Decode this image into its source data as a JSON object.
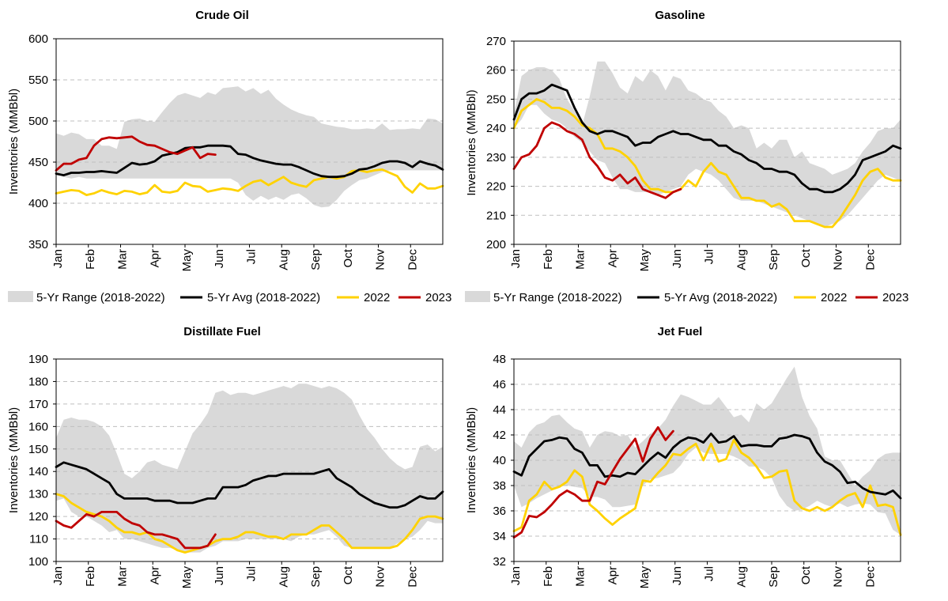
{
  "chart_data": [
    {
      "type": "line",
      "title": "Crude Oil",
      "ylabel": "Inventories (MMBbl)",
      "ylim": [
        350,
        600
      ],
      "yticks": [
        350,
        400,
        450,
        500,
        550,
        600
      ],
      "months": [
        "Jan",
        "Feb",
        "Mar",
        "Apr",
        "May",
        "Jun",
        "Jul",
        "Aug",
        "Sep",
        "Oct",
        "Nov",
        "Dec"
      ],
      "legend": [
        "5-Yr Range (2018-2022)",
        "5-Yr Avg (2018-2022)",
        "2022",
        "2023"
      ],
      "x_weeks": 52,
      "range_high": [
        485,
        482,
        486,
        484,
        478,
        478,
        470,
        470,
        466,
        499,
        502,
        503,
        500,
        499,
        511,
        522,
        531,
        534,
        531,
        528,
        535,
        532,
        540,
        541,
        542,
        536,
        540,
        533,
        538,
        527,
        520,
        514,
        510,
        507,
        505,
        497,
        495,
        493,
        492,
        490,
        490,
        491,
        490,
        497,
        489,
        490,
        490,
        491,
        490,
        503,
        502,
        497
      ],
      "range_low": [
        437,
        432,
        430,
        432,
        430,
        430,
        430,
        430,
        430,
        430,
        430,
        430,
        430,
        430,
        430,
        430,
        430,
        430,
        430,
        430,
        430,
        430,
        430,
        430,
        425,
        410,
        403,
        409,
        404,
        408,
        404,
        410,
        412,
        406,
        398,
        395,
        396,
        404,
        415,
        422,
        428,
        430,
        434,
        438,
        440,
        440,
        440,
        440,
        440,
        440,
        440,
        440
      ],
      "avg": [
        436,
        434,
        437,
        437,
        438,
        438,
        439,
        438,
        437,
        443,
        449,
        447,
        448,
        451,
        458,
        460,
        462,
        467,
        468,
        468,
        470,
        470,
        470,
        469,
        460,
        459,
        455,
        452,
        450,
        448,
        447,
        447,
        444,
        440,
        436,
        433,
        432,
        432,
        433,
        436,
        441,
        442,
        445,
        449,
        451,
        451,
        449,
        444,
        451,
        448,
        446,
        441
      ],
      "y2022": [
        412,
        414,
        416,
        415,
        410,
        412,
        416,
        413,
        411,
        415,
        414,
        411,
        413,
        422,
        414,
        413,
        415,
        425,
        421,
        420,
        414,
        416,
        418,
        417,
        415,
        421,
        426,
        428,
        422,
        427,
        432,
        425,
        422,
        420,
        428,
        430,
        432,
        430,
        432,
        439,
        440,
        438,
        440,
        441,
        437,
        433,
        420,
        413,
        424,
        418,
        418,
        421
      ],
      "y2023": [
        440,
        448,
        448,
        453,
        455,
        470,
        478,
        480,
        479,
        480,
        481,
        475,
        471,
        470,
        466,
        462,
        460,
        464,
        468,
        455,
        460,
        459
      ]
    },
    {
      "type": "line",
      "title": "Gasoline",
      "ylabel": "Inventories (MMBbl)",
      "ylim": [
        200,
        270
      ],
      "yticks": [
        200,
        210,
        220,
        230,
        240,
        250,
        260,
        270
      ],
      "months": [
        "Jan",
        "Feb",
        "Mar",
        "Apr",
        "May",
        "Jun",
        "Jul",
        "Aug",
        "Sep",
        "Oct",
        "Nov",
        "Dec"
      ],
      "legend": [
        "5-Yr Range (2018-2022)",
        "5-Yr Avg (2018-2022)",
        "2022",
        "2023"
      ],
      "x_weeks": 52,
      "range_high": [
        245,
        258,
        260,
        261,
        261,
        260,
        257,
        250,
        246,
        241,
        251,
        263,
        263,
        259,
        254,
        252,
        258,
        256,
        260,
        258,
        253,
        258,
        257,
        253,
        252,
        250,
        249,
        246,
        244,
        240,
        241,
        240,
        233,
        235,
        233,
        236,
        236,
        230,
        232,
        228,
        227,
        226,
        224,
        225,
        226,
        228,
        232,
        235,
        239,
        240,
        240,
        243
      ],
      "range_low": [
        240,
        243,
        248,
        248,
        245,
        243,
        242,
        240,
        237,
        235,
        232,
        229,
        228,
        223,
        219,
        219,
        218,
        218,
        218,
        217,
        218,
        219,
        220,
        224,
        226,
        225,
        224,
        222,
        219,
        216,
        215,
        215,
        215,
        214,
        213,
        212,
        211,
        210,
        209,
        208,
        207,
        206,
        207,
        208,
        210,
        213,
        216,
        219,
        222,
        224,
        223,
        222
      ],
      "avg": [
        243,
        250,
        252,
        252,
        253,
        255,
        254,
        253,
        247,
        242,
        239,
        238,
        239,
        239,
        238,
        237,
        234,
        235,
        235,
        237,
        238,
        239,
        238,
        238,
        237,
        236,
        236,
        234,
        234,
        232,
        231,
        229,
        228,
        226,
        226,
        225,
        225,
        224,
        221,
        219,
        219,
        218,
        218,
        219,
        221,
        224,
        229,
        230,
        231,
        232,
        234,
        233
      ],
      "y2022": [
        240,
        246,
        248,
        250,
        249,
        247,
        247,
        246,
        244,
        241,
        240,
        238,
        233,
        233,
        232,
        230,
        227,
        222,
        219,
        219,
        218,
        218,
        219,
        222,
        220,
        225,
        228,
        225,
        224,
        220,
        216,
        216,
        215,
        215,
        213,
        214,
        212,
        208,
        208,
        208,
        207,
        206,
        206,
        209,
        213,
        217,
        222,
        225,
        226,
        223,
        222,
        222
      ],
      "y2023": [
        226,
        230,
        231,
        234,
        240,
        242,
        241,
        239,
        238,
        236,
        230,
        227,
        223,
        222,
        224,
        221,
        223,
        219,
        218,
        217,
        216,
        218,
        219
      ]
    },
    {
      "type": "line",
      "title": "Distillate Fuel",
      "ylabel": "Inventories (MMBbl)",
      "ylim": [
        100,
        190
      ],
      "yticks": [
        100,
        110,
        120,
        130,
        140,
        150,
        160,
        170,
        180,
        190
      ],
      "months": [
        "Jan",
        "Feb",
        "Mar",
        "Apr",
        "May",
        "Jun",
        "Jul",
        "Aug",
        "Sep",
        "Oct",
        "Nov",
        "Dec"
      ],
      "legend": [
        "5-Yr Range (2018-2022)",
        "5-Yr Avg (2018-2022)",
        "2022",
        "2023"
      ],
      "x_weeks": 52,
      "range_high": [
        155,
        163,
        164,
        163,
        163,
        162,
        160,
        156,
        148,
        139,
        137,
        140,
        144,
        145,
        143,
        142,
        141,
        149,
        157,
        161,
        166,
        175,
        176,
        174,
        175,
        175,
        174,
        175,
        176,
        177,
        178,
        177,
        179,
        179,
        178,
        177,
        178,
        177,
        175,
        172,
        165,
        159,
        155,
        150,
        146,
        143,
        141,
        142,
        151,
        152,
        149,
        151
      ],
      "range_low": [
        127,
        128,
        122,
        120,
        120,
        118,
        116,
        113,
        114,
        110,
        110,
        109,
        108,
        107,
        106,
        106,
        105,
        104,
        104,
        104,
        106,
        107,
        109,
        109,
        109,
        110,
        110,
        110,
        110,
        110,
        110,
        109,
        111,
        112,
        112,
        113,
        114,
        111,
        107,
        106,
        106,
        106,
        106,
        106,
        106,
        108,
        110,
        111,
        114,
        118,
        117,
        117
      ],
      "avg": [
        142,
        144,
        143,
        142,
        141,
        139,
        137,
        135,
        130,
        128,
        128,
        128,
        128,
        127,
        127,
        127,
        126,
        126,
        126,
        127,
        128,
        128,
        133,
        133,
        133,
        134,
        136,
        137,
        138,
        138,
        139,
        139,
        139,
        139,
        139,
        140,
        141,
        137,
        135,
        133,
        130,
        128,
        126,
        125,
        124,
        124,
        125,
        127,
        129,
        128,
        128,
        131
      ],
      "y2022": [
        130,
        129,
        126,
        124,
        122,
        121,
        120,
        118,
        115,
        113,
        113,
        112,
        113,
        110,
        109,
        107,
        105,
        104,
        105,
        106,
        107,
        109,
        110,
        110,
        111,
        113,
        113,
        112,
        111,
        111,
        110,
        112,
        112,
        112,
        114,
        116,
        116,
        113,
        110,
        106,
        106,
        106,
        106,
        106,
        106,
        107,
        110,
        114,
        119,
        120,
        120,
        119
      ],
      "y2023": [
        118,
        116,
        115,
        118,
        121,
        120,
        122,
        122,
        122,
        119,
        117,
        116,
        113,
        112,
        112,
        111,
        110,
        106,
        106,
        106,
        107,
        112
      ]
    },
    {
      "type": "line",
      "title": "Jet Fuel",
      "ylabel": "Inventories (MMBbl)",
      "ylim": [
        32,
        48
      ],
      "yticks": [
        32,
        34,
        36,
        38,
        40,
        42,
        44,
        46,
        48
      ],
      "months": [
        "Jan",
        "Feb",
        "Mar",
        "Apr",
        "May",
        "Jun",
        "Jul",
        "Aug",
        "Sep",
        "Oct",
        "Nov",
        "Dec"
      ],
      "legend": [
        "5-Yr Range (2018-2022)",
        "5-Yr Avg (2018-2022)",
        "2022",
        "2023"
      ],
      "x_weeks": 52,
      "range_high": [
        41.5,
        41.0,
        42.2,
        42.8,
        43.0,
        43.5,
        43.6,
        43.0,
        42.5,
        42.3,
        41.0,
        42.0,
        42.3,
        42.2,
        41.9,
        42.0,
        41.0,
        41.5,
        42.1,
        42.5,
        43.2,
        44.3,
        45.2,
        45.0,
        44.7,
        44.4,
        44.4,
        45.0,
        44.2,
        43.4,
        43.6,
        43.0,
        44.5,
        44.0,
        44.5,
        45.5,
        46.5,
        47.4,
        45.0,
        43.5,
        42.5,
        40.3,
        40.0,
        40.0,
        39.0,
        38.0,
        38.7,
        39.2,
        40.1,
        40.5,
        40.6,
        40.6
      ],
      "range_low": [
        38.0,
        36.3,
        36.6,
        37.0,
        37.3,
        37.6,
        37.9,
        38.0,
        37.9,
        37.8,
        37.1,
        37.1,
        36.9,
        36.3,
        36.3,
        36.4,
        36.5,
        38.0,
        38.5,
        38.6,
        38.8,
        39.0,
        39.6,
        40.5,
        41.0,
        40.6,
        40.5,
        40.5,
        40.5,
        40.3,
        40.0,
        39.5,
        39.5,
        39.2,
        38.6,
        37.2,
        36.4,
        36.0,
        36.1,
        36.4,
        36.8,
        36.5,
        36.3,
        36.6,
        36.3,
        36.5,
        36.6,
        36.5,
        35.9,
        35.8,
        34.5,
        34.1
      ],
      "avg": [
        39.1,
        38.8,
        40.3,
        40.9,
        41.5,
        41.6,
        41.8,
        41.7,
        40.9,
        40.6,
        39.6,
        39.6,
        38.7,
        38.8,
        38.7,
        39.0,
        38.9,
        39.5,
        40.1,
        40.6,
        40.2,
        41.0,
        41.5,
        41.8,
        41.7,
        41.4,
        42.1,
        41.4,
        41.5,
        41.9,
        41.1,
        41.2,
        41.2,
        41.1,
        41.1,
        41.7,
        41.8,
        42.0,
        41.9,
        41.7,
        40.6,
        39.9,
        39.6,
        39.1,
        38.2,
        38.3,
        37.8,
        37.5,
        37.4,
        37.3,
        37.6,
        37.0
      ],
      "y2022": [
        34.4,
        34.7,
        36.8,
        37.3,
        38.3,
        37.7,
        37.9,
        38.3,
        39.2,
        38.7,
        36.5,
        36.0,
        35.4,
        34.9,
        35.4,
        35.8,
        36.2,
        38.4,
        38.3,
        39.0,
        39.6,
        40.5,
        40.4,
        40.9,
        41.3,
        40.0,
        41.3,
        39.9,
        40.1,
        41.6,
        40.6,
        40.2,
        39.5,
        38.6,
        38.7,
        39.1,
        39.2,
        36.8,
        36.2,
        36.0,
        36.3,
        36.0,
        36.3,
        36.8,
        37.2,
        37.4,
        36.3,
        38.0,
        36.4,
        36.5,
        36.3,
        34.1
      ],
      "y2023": [
        33.9,
        34.3,
        35.6,
        35.5,
        35.9,
        36.5,
        37.2,
        37.6,
        37.3,
        36.8,
        36.8,
        38.3,
        38.1,
        39.1,
        40.1,
        40.9,
        41.7,
        39.9,
        41.7,
        42.6,
        41.6,
        42.3
      ]
    }
  ]
}
